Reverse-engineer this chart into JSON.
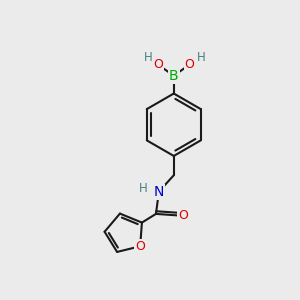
{
  "background_color": "#ebebeb",
  "bond_color": "#1a1a1a",
  "atom_colors": {
    "B": "#00aa00",
    "O": "#dd0000",
    "N": "#0000cc",
    "H": "#4a8080",
    "C": "#1a1a1a"
  },
  "figsize": [
    3.0,
    3.0
  ],
  "dpi": 100,
  "xlim": [
    0,
    10
  ],
  "ylim": [
    0,
    10
  ]
}
